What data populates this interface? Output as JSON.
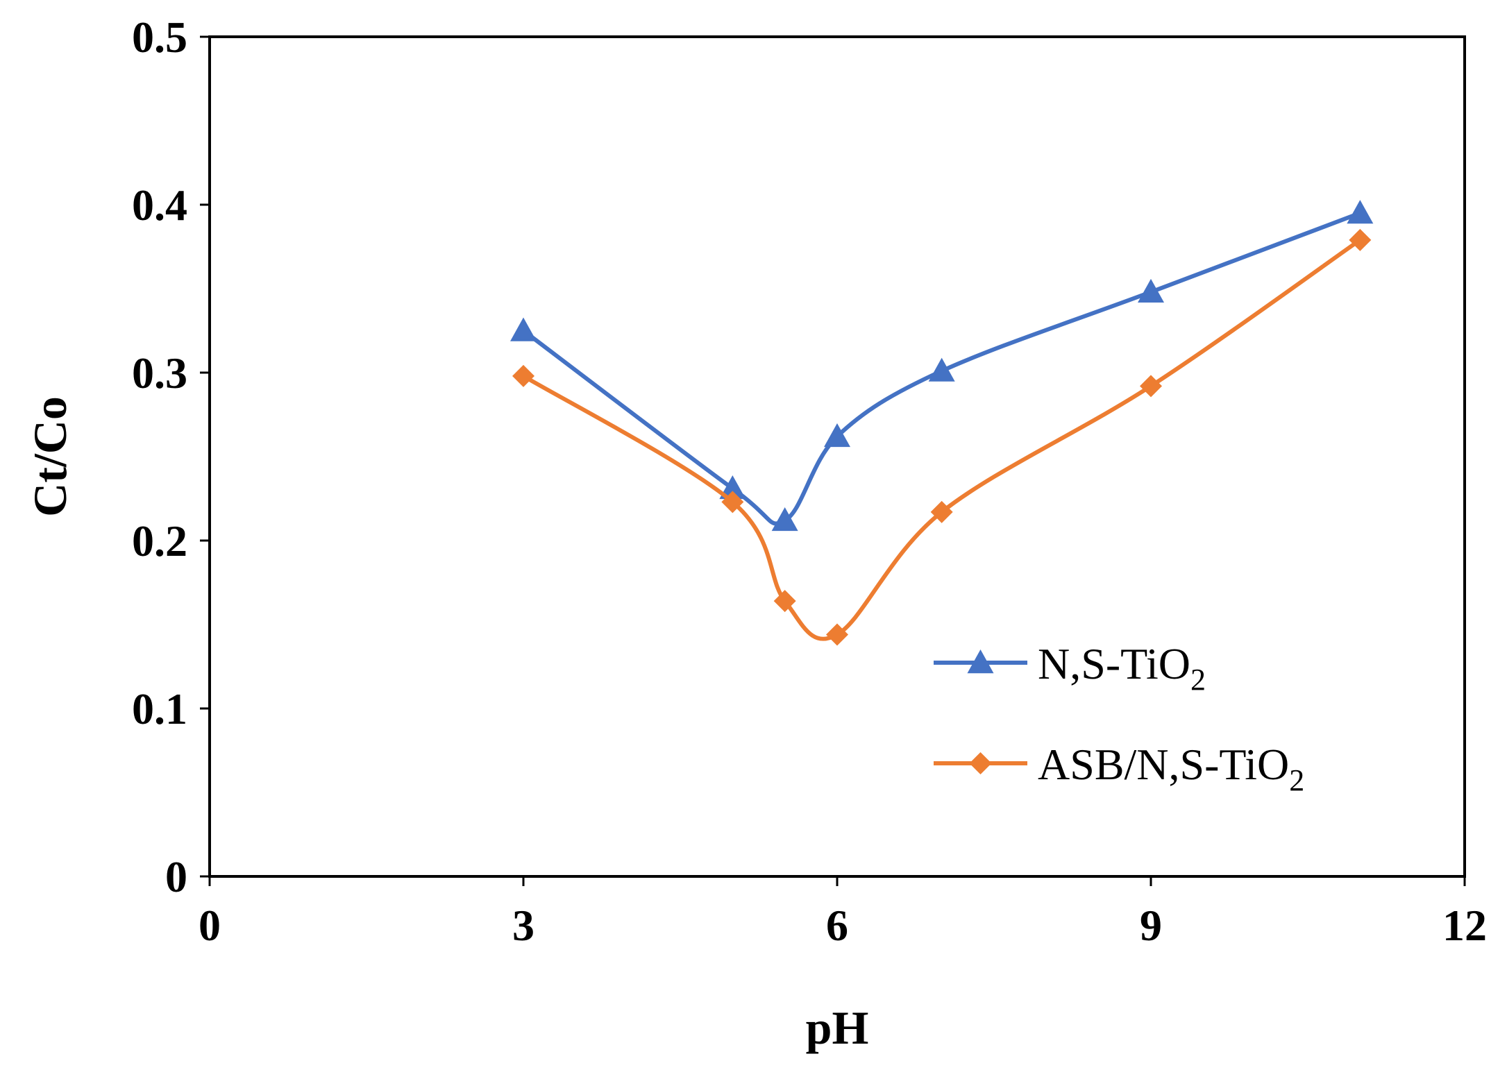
{
  "chart_data": {
    "type": "line",
    "title": "",
    "xlabel": "pH",
    "ylabel": "Ct/Co",
    "xlim": [
      0,
      12
    ],
    "ylim": [
      0,
      0.5
    ],
    "xticks": [
      0,
      3,
      6,
      9,
      12
    ],
    "yticks": [
      0,
      0.1,
      0.2,
      0.3,
      0.4,
      0.5
    ],
    "xtick_labels": [
      "0",
      "3",
      "6",
      "9",
      "12"
    ],
    "ytick_labels": [
      "0",
      "0.1",
      "0.2",
      "0.3",
      "0.4",
      "0.5"
    ],
    "grid": false,
    "legend_position": "right",
    "series": [
      {
        "name": "N,S-TiO2",
        "label_main": "N,S-TiO",
        "label_sub": "2",
        "color": "#4472C4",
        "marker": "triangle",
        "x": [
          3,
          5,
          5.5,
          6,
          7,
          9,
          11
        ],
        "y": [
          0.325,
          0.231,
          0.212,
          0.262,
          0.301,
          0.348,
          0.395
        ]
      },
      {
        "name": "ASB/N,S-TiO2",
        "label_main": "ASB/N,S-TiO",
        "label_sub": "2",
        "color": "#ED7D31",
        "marker": "diamond",
        "x": [
          3,
          5,
          5.5,
          6,
          7,
          9,
          11
        ],
        "y": [
          0.298,
          0.223,
          0.164,
          0.144,
          0.217,
          0.292,
          0.379
        ]
      }
    ]
  }
}
